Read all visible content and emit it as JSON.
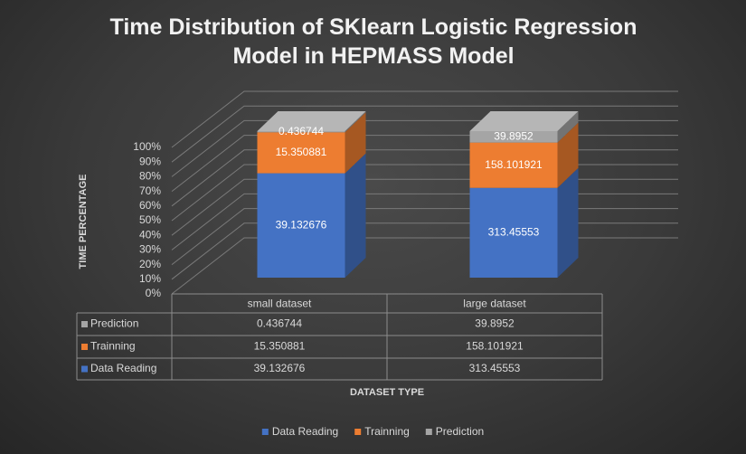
{
  "chart_data": {
    "type": "bar",
    "stacking": "percent",
    "title": "Time Distribution of SKlearn Logistic Regression Model in HEPMASS Model",
    "x_label": "DATASET TYPE",
    "y_label": "TIME PERCENTAGE",
    "categories": [
      "small dataset",
      "large dataset"
    ],
    "series": [
      {
        "name": "Data Reading",
        "color": "#4472c4",
        "values": [
          39.132676,
          313.45553
        ]
      },
      {
        "name": "Trainning",
        "color": "#ed7d31",
        "values": [
          15.350881,
          158.101921
        ]
      },
      {
        "name": "Prediction",
        "color": "#a5a5a5",
        "values": [
          0.436744,
          39.8952
        ]
      }
    ],
    "ylim": [
      0,
      100
    ],
    "yticks": [
      {
        "value": 0,
        "label": "0%"
      },
      {
        "value": 10,
        "label": "10%"
      },
      {
        "value": 20,
        "label": "20%"
      },
      {
        "value": 30,
        "label": "30%"
      },
      {
        "value": 40,
        "label": "40%"
      },
      {
        "value": 50,
        "label": "50%"
      },
      {
        "value": 60,
        "label": "60%"
      },
      {
        "value": 70,
        "label": "70%"
      },
      {
        "value": 80,
        "label": "80%"
      },
      {
        "value": 90,
        "label": "90%"
      },
      {
        "value": 100,
        "label": "100%"
      }
    ],
    "grid": true,
    "legend": "bottom",
    "data_table": true
  }
}
